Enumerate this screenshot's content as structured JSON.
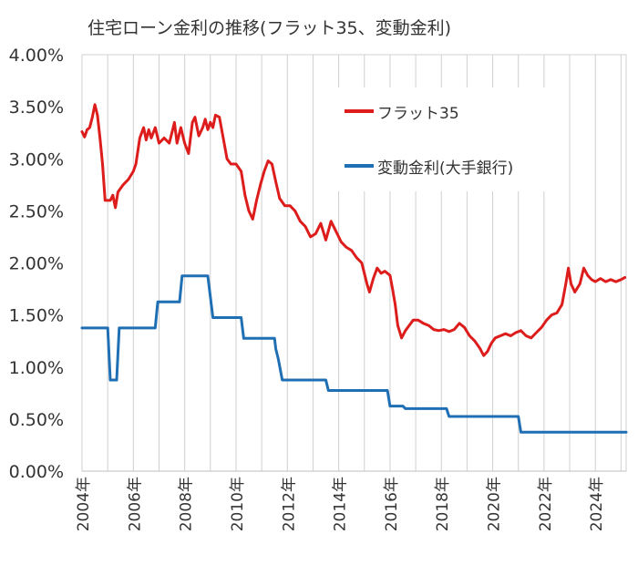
{
  "chart_data": {
    "type": "line",
    "title": "住宅ローン金利の推移(フラット35、変動金利)",
    "xlabel": "",
    "ylabel": "",
    "ylim": [
      0,
      4.0
    ],
    "xlim": [
      2004,
      2025.2
    ],
    "y_ticks": [
      "0.00%",
      "0.50%",
      "1.00%",
      "1.50%",
      "2.00%",
      "2.50%",
      "3.00%",
      "3.50%",
      "4.00%"
    ],
    "x_tick_labels": [
      "2004年",
      "2006年",
      "2008年",
      "2010年",
      "2012年",
      "2014年",
      "2016年",
      "2018年",
      "2020年",
      "2022年",
      "2024年"
    ],
    "grid": "vertical gridlines at each year",
    "legend_position": "top-right",
    "series": [
      {
        "name": "フラット35",
        "color": "#dd1c1c",
        "points": [
          [
            2004.0,
            3.26
          ],
          [
            2004.1,
            3.21
          ],
          [
            2004.2,
            3.28
          ],
          [
            2004.3,
            3.3
          ],
          [
            2004.4,
            3.4
          ],
          [
            2004.5,
            3.52
          ],
          [
            2004.6,
            3.42
          ],
          [
            2004.7,
            3.2
          ],
          [
            2004.8,
            2.95
          ],
          [
            2004.9,
            2.6
          ],
          [
            2005.1,
            2.6
          ],
          [
            2005.2,
            2.65
          ],
          [
            2005.3,
            2.53
          ],
          [
            2005.4,
            2.68
          ],
          [
            2005.6,
            2.75
          ],
          [
            2005.8,
            2.8
          ],
          [
            2006.0,
            2.88
          ],
          [
            2006.1,
            2.95
          ],
          [
            2006.25,
            3.2
          ],
          [
            2006.4,
            3.3
          ],
          [
            2006.5,
            3.18
          ],
          [
            2006.6,
            3.28
          ],
          [
            2006.7,
            3.2
          ],
          [
            2006.85,
            3.3
          ],
          [
            2007.0,
            3.15
          ],
          [
            2007.2,
            3.2
          ],
          [
            2007.4,
            3.15
          ],
          [
            2007.5,
            3.25
          ],
          [
            2007.6,
            3.35
          ],
          [
            2007.7,
            3.15
          ],
          [
            2007.85,
            3.3
          ],
          [
            2008.0,
            3.15
          ],
          [
            2008.15,
            3.05
          ],
          [
            2008.3,
            3.35
          ],
          [
            2008.4,
            3.4
          ],
          [
            2008.55,
            3.22
          ],
          [
            2008.7,
            3.3
          ],
          [
            2008.8,
            3.38
          ],
          [
            2008.9,
            3.28
          ],
          [
            2009.0,
            3.35
          ],
          [
            2009.1,
            3.3
          ],
          [
            2009.2,
            3.42
          ],
          [
            2009.35,
            3.4
          ],
          [
            2009.5,
            3.2
          ],
          [
            2009.65,
            3.0
          ],
          [
            2009.8,
            2.95
          ],
          [
            2010.0,
            2.95
          ],
          [
            2010.2,
            2.88
          ],
          [
            2010.35,
            2.65
          ],
          [
            2010.5,
            2.5
          ],
          [
            2010.65,
            2.42
          ],
          [
            2010.8,
            2.6
          ],
          [
            2010.95,
            2.75
          ],
          [
            2011.1,
            2.88
          ],
          [
            2011.25,
            2.98
          ],
          [
            2011.4,
            2.95
          ],
          [
            2011.55,
            2.78
          ],
          [
            2011.7,
            2.62
          ],
          [
            2011.9,
            2.55
          ],
          [
            2012.1,
            2.55
          ],
          [
            2012.3,
            2.5
          ],
          [
            2012.5,
            2.4
          ],
          [
            2012.7,
            2.35
          ],
          [
            2012.9,
            2.25
          ],
          [
            2013.1,
            2.28
          ],
          [
            2013.3,
            2.38
          ],
          [
            2013.5,
            2.22
          ],
          [
            2013.7,
            2.4
          ],
          [
            2013.9,
            2.3
          ],
          [
            2014.1,
            2.2
          ],
          [
            2014.3,
            2.15
          ],
          [
            2014.5,
            2.12
          ],
          [
            2014.7,
            2.05
          ],
          [
            2014.9,
            2.0
          ],
          [
            2015.1,
            1.8
          ],
          [
            2015.2,
            1.72
          ],
          [
            2015.35,
            1.85
          ],
          [
            2015.5,
            1.95
          ],
          [
            2015.65,
            1.9
          ],
          [
            2015.8,
            1.92
          ],
          [
            2016.0,
            1.88
          ],
          [
            2016.1,
            1.75
          ],
          [
            2016.2,
            1.6
          ],
          [
            2016.3,
            1.4
          ],
          [
            2016.45,
            1.28
          ],
          [
            2016.6,
            1.35
          ],
          [
            2016.75,
            1.4
          ],
          [
            2016.9,
            1.45
          ],
          [
            2017.1,
            1.45
          ],
          [
            2017.3,
            1.42
          ],
          [
            2017.5,
            1.4
          ],
          [
            2017.7,
            1.36
          ],
          [
            2017.9,
            1.35
          ],
          [
            2018.1,
            1.36
          ],
          [
            2018.3,
            1.34
          ],
          [
            2018.5,
            1.36
          ],
          [
            2018.7,
            1.42
          ],
          [
            2018.9,
            1.38
          ],
          [
            2019.1,
            1.3
          ],
          [
            2019.3,
            1.25
          ],
          [
            2019.5,
            1.18
          ],
          [
            2019.65,
            1.11
          ],
          [
            2019.8,
            1.15
          ],
          [
            2019.95,
            1.23
          ],
          [
            2020.1,
            1.28
          ],
          [
            2020.3,
            1.3
          ],
          [
            2020.5,
            1.32
          ],
          [
            2020.7,
            1.3
          ],
          [
            2020.9,
            1.33
          ],
          [
            2021.1,
            1.35
          ],
          [
            2021.3,
            1.3
          ],
          [
            2021.5,
            1.28
          ],
          [
            2021.7,
            1.33
          ],
          [
            2021.9,
            1.38
          ],
          [
            2022.1,
            1.45
          ],
          [
            2022.3,
            1.5
          ],
          [
            2022.5,
            1.52
          ],
          [
            2022.7,
            1.6
          ],
          [
            2022.85,
            1.8
          ],
          [
            2022.95,
            1.95
          ],
          [
            2023.05,
            1.8
          ],
          [
            2023.2,
            1.72
          ],
          [
            2023.4,
            1.8
          ],
          [
            2023.55,
            1.95
          ],
          [
            2023.7,
            1.88
          ],
          [
            2023.85,
            1.84
          ],
          [
            2024.0,
            1.82
          ],
          [
            2024.2,
            1.85
          ],
          [
            2024.4,
            1.82
          ],
          [
            2024.6,
            1.84
          ],
          [
            2024.8,
            1.82
          ],
          [
            2025.0,
            1.84
          ],
          [
            2025.15,
            1.86
          ]
        ]
      },
      {
        "name": "変動金利(大手銀行)",
        "color": "#1f6fb4",
        "points": [
          [
            2004.0,
            1.375
          ],
          [
            2005.0,
            1.375
          ],
          [
            2005.1,
            0.875
          ],
          [
            2005.35,
            0.875
          ],
          [
            2005.45,
            1.375
          ],
          [
            2006.85,
            1.375
          ],
          [
            2006.95,
            1.625
          ],
          [
            2007.8,
            1.625
          ],
          [
            2007.9,
            1.875
          ],
          [
            2008.9,
            1.875
          ],
          [
            2009.0,
            1.675
          ],
          [
            2009.1,
            1.475
          ],
          [
            2010.2,
            1.475
          ],
          [
            2010.3,
            1.275
          ],
          [
            2011.5,
            1.275
          ],
          [
            2011.55,
            1.175
          ],
          [
            2011.65,
            1.075
          ],
          [
            2011.8,
            0.875
          ],
          [
            2013.5,
            0.875
          ],
          [
            2013.6,
            0.775
          ],
          [
            2015.9,
            0.775
          ],
          [
            2016.0,
            0.625
          ],
          [
            2016.5,
            0.625
          ],
          [
            2016.6,
            0.6
          ],
          [
            2018.2,
            0.6
          ],
          [
            2018.3,
            0.525
          ],
          [
            2021.0,
            0.525
          ],
          [
            2021.1,
            0.375
          ],
          [
            2025.2,
            0.375
          ]
        ]
      }
    ]
  }
}
